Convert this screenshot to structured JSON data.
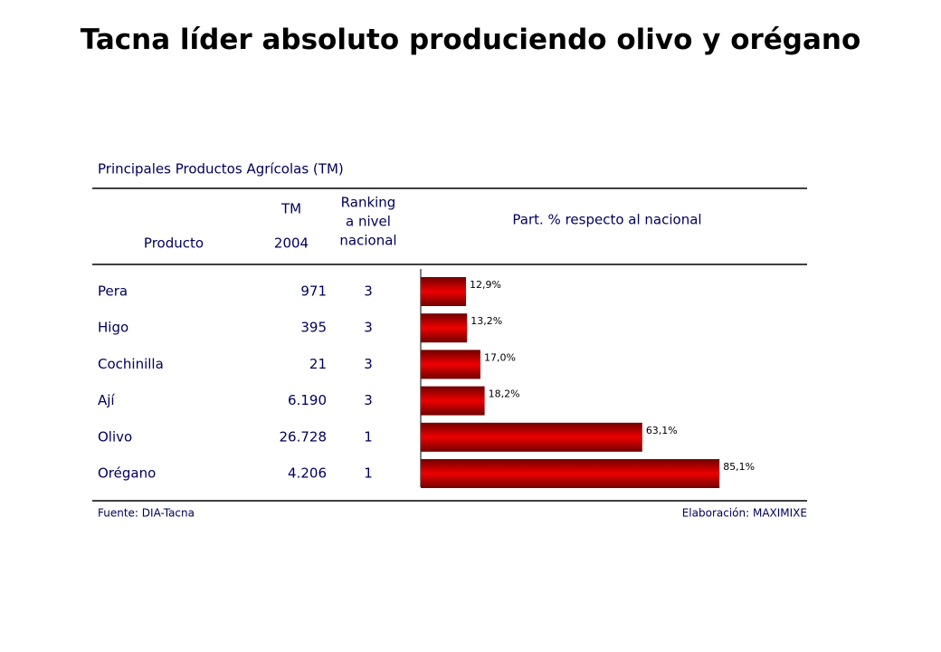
{
  "title": "Tacna líder absoluto produciendo olivo y orégano",
  "table": {
    "title": "Principales Productos Agrícolas (TM)",
    "headers": {
      "product": "Producto",
      "tm": [
        "TM",
        "2004"
      ],
      "ranking": [
        "Ranking",
        "a nivel",
        "nacional"
      ]
    },
    "rows": [
      [
        "971",
        "3"
      ],
      [
        "395",
        "3"
      ],
      [
        "21",
        "3"
      ],
      [
        "6.190",
        "3"
      ],
      [
        "26.728",
        "1"
      ],
      [
        "4.206",
        "1"
      ]
    ],
    "source": "Fuente: DIA-Tacna",
    "credit": "Elaboración: MAXIMIXE"
  },
  "chart_data": {
    "type": "bar",
    "orientation": "horizontal",
    "title": "Part. % respecto al nacional",
    "categories": [
      "Pera",
      "Higo",
      "Cochinilla",
      "Ají",
      "Olivo",
      "Orégano"
    ],
    "values": [
      12.9,
      13.2,
      17.0,
      18.2,
      63.1,
      85.1
    ],
    "value_labels": [
      "12,9%",
      "13,2%",
      "17,0%",
      "18,2%",
      "63,1%",
      "85,1%"
    ],
    "color": "#ee0000",
    "xlim": [
      0,
      100
    ]
  }
}
